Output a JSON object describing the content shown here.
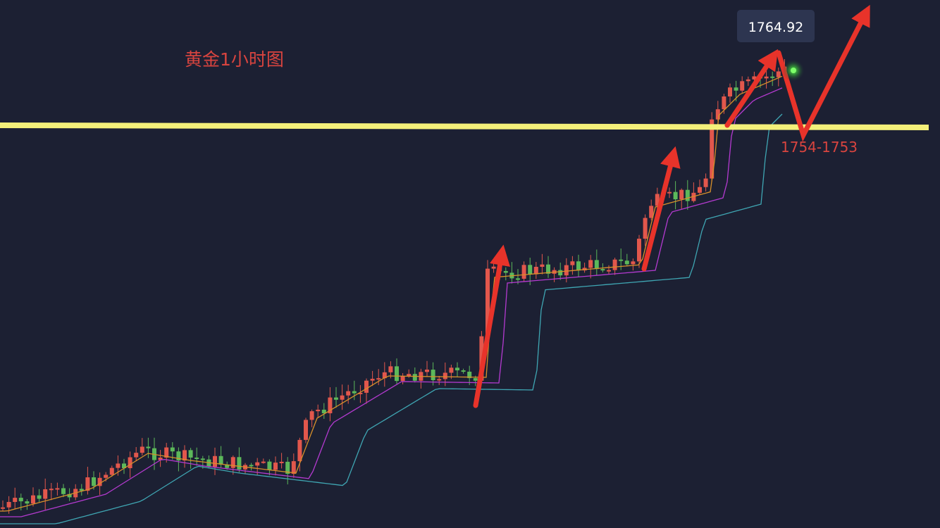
{
  "title": "黄金1小时图",
  "price_tag": "1764.92",
  "support_label": "1754-1753"
}
